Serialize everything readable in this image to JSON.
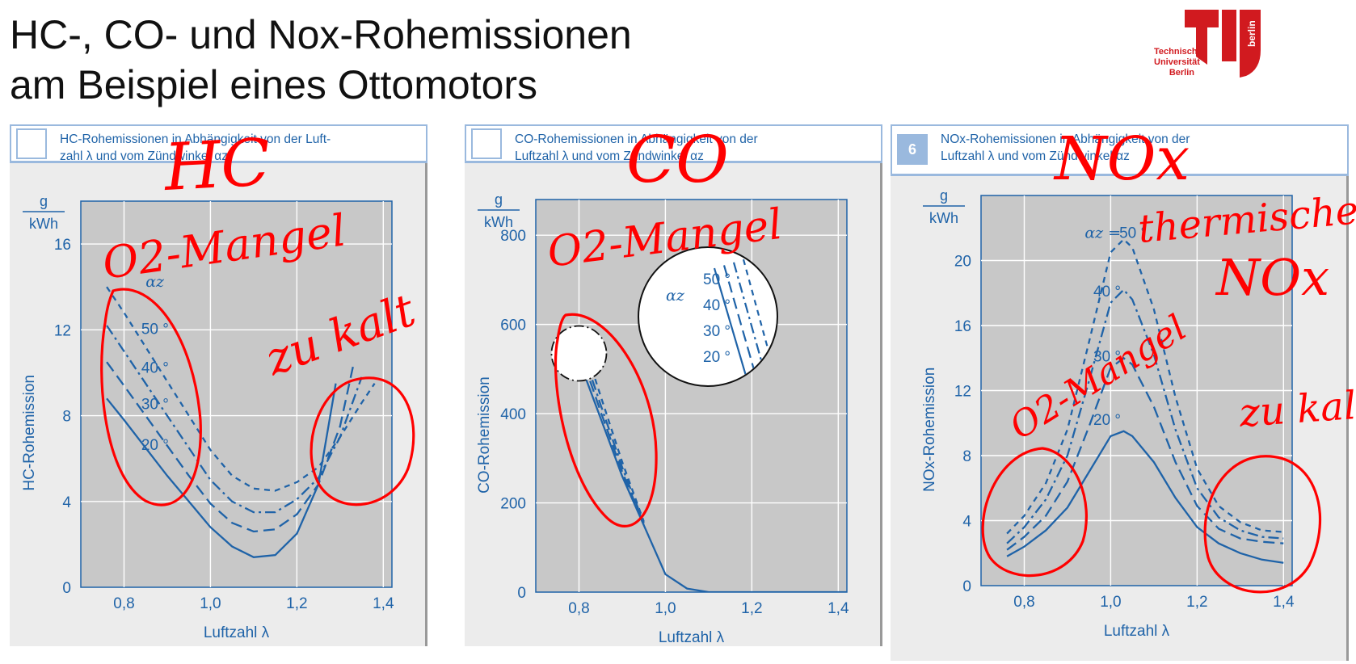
{
  "slide": {
    "title_line1": "HC-, CO- und Nox-Rohemissionen",
    "title_line2": "am Beispiel eines Ottomotors"
  },
  "logo": {
    "line1": "Technische",
    "line2": "Universität",
    "line3": "Berlin",
    "vertical": "berlin",
    "color": "#d11a1f"
  },
  "colors": {
    "curve": "#1f63a8",
    "plot_bg": "#c8c8c8",
    "caption_border": "#9ab9de",
    "ink": "#ff0000"
  },
  "panels": [
    {
      "number": "",
      "caption_line1": "HC-Rohemissionen in Abhängigkeit von der Luft-",
      "caption_line2": "zahl λ und vom Zündwinkel αz"
    },
    {
      "number": "",
      "caption_line1": "CO-Rohemissionen in Abhängigkeit von der",
      "caption_line2": "Luftzahl λ und vom Zündwinkel αz"
    },
    {
      "number": "6",
      "caption_line1": "NOx-Rohemissionen in Abhängigkeit von der",
      "caption_line2": "Luftzahl λ und vom Zündwinkel αz"
    }
  ],
  "annotations": {
    "hc": "HC",
    "co": "CO",
    "nox": "NOx",
    "o2_mangel_1": "O2-Mangel",
    "o2_mangel_2": "O2-Mangel",
    "o2_mangel_3": "O2-Mangel",
    "zu_kalt_1": "zu kalt",
    "zu_kalt_2": "zu kalt",
    "thermisches": "thermisches",
    "thermisches_nox": "NOx"
  },
  "chart_data": [
    {
      "type": "line",
      "ylabel": "HC-Rohemission",
      "unit_num": "g",
      "unit_den": "kWh",
      "xlabel": "Luftzahl λ",
      "xlim": [
        0.7,
        1.42
      ],
      "ylim": [
        0,
        18
      ],
      "x_ticks": [
        0.8,
        1.0,
        1.2,
        1.4
      ],
      "x_tick_labels": [
        "0,8",
        "1,0",
        "1,2",
        "1,4"
      ],
      "y_ticks": [
        0,
        4,
        8,
        12,
        16
      ],
      "y_tick_labels": [
        "0",
        "4",
        "8",
        "12",
        "16"
      ],
      "grid": true,
      "legend_title": "αz",
      "series": [
        {
          "name": "20 °",
          "dash": "solid",
          "label_at": [
            0.84,
            6.4
          ],
          "points": [
            [
              0.76,
              8.8
            ],
            [
              0.8,
              7.8
            ],
            [
              0.85,
              6.5
            ],
            [
              0.9,
              5.2
            ],
            [
              0.95,
              4.0
            ],
            [
              1.0,
              2.8
            ],
            [
              1.05,
              1.9
            ],
            [
              1.1,
              1.4
            ],
            [
              1.15,
              1.5
            ],
            [
              1.2,
              2.5
            ],
            [
              1.25,
              4.8
            ],
            [
              1.29,
              9.5
            ]
          ]
        },
        {
          "name": "30 °",
          "dash": "longdash",
          "label_at": [
            0.84,
            8.3
          ],
          "points": [
            [
              0.76,
              10.5
            ],
            [
              0.8,
              9.4
            ],
            [
              0.85,
              8.0
            ],
            [
              0.9,
              6.6
            ],
            [
              0.95,
              5.2
            ],
            [
              1.0,
              3.9
            ],
            [
              1.05,
              3.0
            ],
            [
              1.1,
              2.6
            ],
            [
              1.15,
              2.7
            ],
            [
              1.2,
              3.4
            ],
            [
              1.25,
              4.8
            ],
            [
              1.3,
              7.5
            ],
            [
              1.33,
              10.3
            ]
          ]
        },
        {
          "name": "40 °",
          "dash": "dashdot",
          "label_at": [
            0.84,
            10.0
          ],
          "points": [
            [
              0.76,
              12.2
            ],
            [
              0.8,
              11.0
            ],
            [
              0.85,
              9.5
            ],
            [
              0.9,
              8.0
            ],
            [
              0.95,
              6.5
            ],
            [
              1.0,
              5.0
            ],
            [
              1.05,
              4.0
            ],
            [
              1.1,
              3.5
            ],
            [
              1.15,
              3.5
            ],
            [
              1.2,
              4.1
            ],
            [
              1.25,
              5.1
            ],
            [
              1.3,
              7.0
            ],
            [
              1.35,
              9.8
            ]
          ]
        },
        {
          "name": "50 °",
          "dash": "shortdash",
          "label_at": [
            0.84,
            11.8
          ],
          "points": [
            [
              0.76,
              14.0
            ],
            [
              0.8,
              12.8
            ],
            [
              0.85,
              11.2
            ],
            [
              0.9,
              9.6
            ],
            [
              0.95,
              8.0
            ],
            [
              1.0,
              6.4
            ],
            [
              1.05,
              5.2
            ],
            [
              1.1,
              4.6
            ],
            [
              1.15,
              4.5
            ],
            [
              1.2,
              4.9
            ],
            [
              1.25,
              5.6
            ],
            [
              1.3,
              7.0
            ],
            [
              1.35,
              8.6
            ],
            [
              1.38,
              9.5
            ]
          ]
        }
      ]
    },
    {
      "type": "line",
      "ylabel": "CO-Rohemission",
      "unit_num": "g",
      "unit_den": "kWh",
      "xlabel": "Luftzahl λ",
      "xlim": [
        0.7,
        1.42
      ],
      "ylim": [
        0,
        880
      ],
      "x_ticks": [
        0.8,
        1.0,
        1.2,
        1.4
      ],
      "x_tick_labels": [
        "0,8",
        "1,0",
        "1,2",
        "1,4"
      ],
      "y_ticks": [
        0,
        200,
        400,
        600,
        800
      ],
      "y_tick_labels": [
        "0",
        "200",
        "400",
        "600",
        "800"
      ],
      "grid": true,
      "legend_title": "αz",
      "series": [
        {
          "name": "20 °",
          "dash": "solid",
          "points": [
            [
              0.8,
              520
            ],
            [
              0.85,
              390
            ],
            [
              0.9,
              260
            ],
            [
              0.95,
              150
            ],
            [
              1.0,
              40
            ],
            [
              1.05,
              8
            ],
            [
              1.1,
              0
            ],
            [
              1.42,
              0
            ]
          ]
        },
        {
          "name": "30 °",
          "dash": "longdash",
          "points": [
            [
              0.8,
              545
            ],
            [
              0.85,
              405
            ],
            [
              0.9,
              270
            ],
            [
              0.95,
              152
            ]
          ]
        },
        {
          "name": "40 °",
          "dash": "dashdot",
          "points": [
            [
              0.8,
              565
            ],
            [
              0.85,
              420
            ],
            [
              0.9,
              280
            ],
            [
              0.95,
              155
            ]
          ]
        },
        {
          "name": "50 °",
          "dash": "shortdash",
          "points": [
            [
              0.8,
              590
            ],
            [
              0.85,
              440
            ],
            [
              0.9,
              292
            ],
            [
              0.95,
              158
            ]
          ]
        }
      ]
    },
    {
      "type": "line",
      "ylabel": "NOx-Rohemission",
      "unit_num": "g",
      "unit_den": "kWh",
      "xlabel": "Luftzahl λ",
      "xlim": [
        0.7,
        1.42
      ],
      "ylim": [
        0,
        24
      ],
      "x_ticks": [
        0.8,
        1.0,
        1.2,
        1.4
      ],
      "x_tick_labels": [
        "0,8",
        "1,0",
        "1,2",
        "1,4"
      ],
      "y_ticks": [
        0,
        4,
        8,
        12,
        16,
        20
      ],
      "y_tick_labels": [
        "0",
        "4",
        "8",
        "12",
        "16",
        "20"
      ],
      "grid": true,
      "legend_title": "αz",
      "series": [
        {
          "name": "20 °",
          "dash": "solid",
          "label_at": [
            0.96,
            9.9
          ],
          "points": [
            [
              0.76,
              1.8
            ],
            [
              0.8,
              2.4
            ],
            [
              0.85,
              3.4
            ],
            [
              0.9,
              4.8
            ],
            [
              0.95,
              7.0
            ],
            [
              1.0,
              9.2
            ],
            [
              1.03,
              9.5
            ],
            [
              1.05,
              9.2
            ],
            [
              1.1,
              7.6
            ],
            [
              1.15,
              5.4
            ],
            [
              1.2,
              3.6
            ],
            [
              1.25,
              2.6
            ],
            [
              1.3,
              2.0
            ],
            [
              1.35,
              1.6
            ],
            [
              1.4,
              1.4
            ]
          ]
        },
        {
          "name": "30 °",
          "dash": "longdash",
          "label_at": [
            0.96,
            13.8
          ],
          "points": [
            [
              0.76,
              2.2
            ],
            [
              0.8,
              3.0
            ],
            [
              0.85,
              4.3
            ],
            [
              0.9,
              6.4
            ],
            [
              0.95,
              9.8
            ],
            [
              1.0,
              13.4
            ],
            [
              1.03,
              14.0
            ],
            [
              1.05,
              13.6
            ],
            [
              1.1,
              11.0
            ],
            [
              1.15,
              7.6
            ],
            [
              1.2,
              4.9
            ],
            [
              1.25,
              3.5
            ],
            [
              1.3,
              2.9
            ],
            [
              1.35,
              2.7
            ],
            [
              1.4,
              2.6
            ]
          ]
        },
        {
          "name": "40 °",
          "dash": "dashdot",
          "label_at": [
            0.96,
            17.8
          ],
          "points": [
            [
              0.76,
              2.6
            ],
            [
              0.8,
              3.6
            ],
            [
              0.85,
              5.3
            ],
            [
              0.9,
              8.0
            ],
            [
              0.95,
              12.6
            ],
            [
              1.0,
              17.4
            ],
            [
              1.03,
              18.2
            ],
            [
              1.05,
              17.6
            ],
            [
              1.1,
              14.2
            ],
            [
              1.15,
              9.6
            ],
            [
              1.2,
              6.0
            ],
            [
              1.25,
              4.2
            ],
            [
              1.3,
              3.4
            ],
            [
              1.35,
              3.0
            ],
            [
              1.4,
              2.9
            ]
          ]
        },
        {
          "name": "50 °",
          "dash": "shortdash",
          "label_at": [
            1.02,
            21.4
          ],
          "points": [
            [
              0.76,
              3.2
            ],
            [
              0.8,
              4.3
            ],
            [
              0.85,
              6.3
            ],
            [
              0.9,
              9.6
            ],
            [
              0.95,
              15.0
            ],
            [
              1.0,
              20.5
            ],
            [
              1.03,
              21.3
            ],
            [
              1.05,
              20.8
            ],
            [
              1.1,
              17.0
            ],
            [
              1.15,
              11.6
            ],
            [
              1.2,
              7.2
            ],
            [
              1.25,
              4.9
            ],
            [
              1.3,
              3.9
            ],
            [
              1.35,
              3.4
            ],
            [
              1.4,
              3.3
            ]
          ]
        }
      ]
    }
  ]
}
